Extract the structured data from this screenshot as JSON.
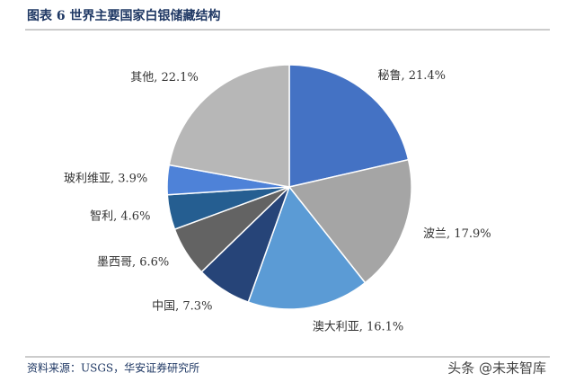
{
  "chart_data": {
    "type": "pie",
    "title": "图表 6 世界主要国家白银储藏结构",
    "labels": [
      "秘鲁, 21.4%",
      "波兰, 17.9%",
      "澳大利亚, 16.1%",
      "中国, 7.3%",
      "墨西哥, 6.6%",
      "智利, 4.6%",
      "玻利维亚, 3.9%",
      "其他, 22.1%"
    ],
    "values": [
      21.4,
      17.9,
      16.1,
      7.3,
      6.6,
      4.6,
      3.9,
      22.1
    ],
    "colors": [
      "#4472c4",
      "#a5a5a5",
      "#5b9bd5",
      "#264478",
      "#636363",
      "#255e91",
      "#4e82d8",
      "#b7b7b7"
    ],
    "source": "资料来源：USGS，华安证券研究所",
    "watermark": "头条 @未来智库"
  }
}
